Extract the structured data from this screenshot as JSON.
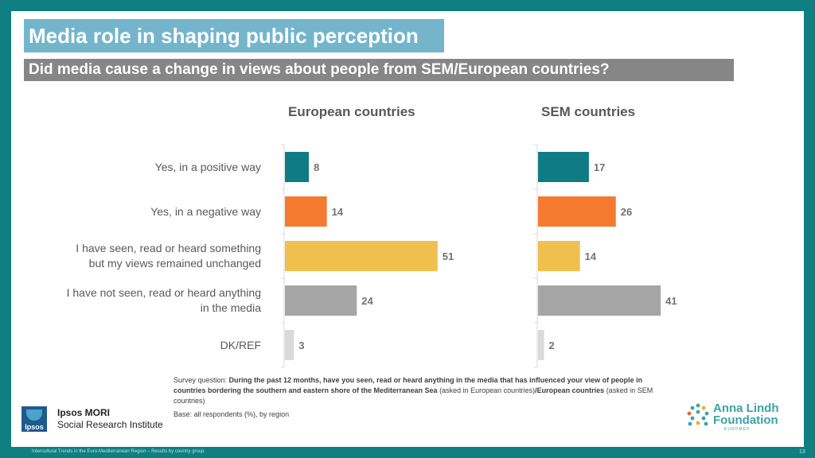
{
  "header": {
    "title": "Media role in shaping public perception",
    "subtitle": "Did media cause a change in views about people from SEM/European countries?"
  },
  "chart_data": {
    "type": "bar",
    "orientation": "horizontal",
    "categories": [
      "Yes, in a positive way",
      "Yes, in a negative way",
      "I have seen, read or heard something but my views remained unchanged",
      "I have not seen, read or heard anything in the media",
      "DK/REF"
    ],
    "category_lines": [
      [
        "Yes, in a positive way"
      ],
      [
        "Yes, in a negative way"
      ],
      [
        "I have seen, read or heard something",
        "but my views remained unchanged"
      ],
      [
        "I have not seen, read or heard anything",
        "in the media"
      ],
      [
        "DK/REF"
      ]
    ],
    "bar_colors": [
      "#0e7c82",
      "#f47a2f",
      "#f1bf4d",
      "#a5a5a5",
      "#d9d9d9"
    ],
    "label_color": "#767171",
    "series": [
      {
        "name": "European countries",
        "values": [
          8,
          14,
          51,
          24,
          3
        ]
      },
      {
        "name": "SEM countries",
        "values": [
          17,
          26,
          14,
          41,
          2
        ]
      }
    ],
    "xlim": [
      0,
      60
    ],
    "unit": "%"
  },
  "footer": {
    "question_prefix": "Survey question: ",
    "question_bold": "During the past 12 months, have you seen, read or heard anything in the media that has influenced your view of people in countries bordering the southern and eastern shore of the Mediterranean Sea",
    "question_note1": " (asked in European countries)",
    "question_bold2": "/European countries",
    "question_note2": " (asked in SEM countries)",
    "base": "Base: all respondents (%), by region",
    "bottom_text": "Intercultural Trends in the Euro-Mediterranean Region – Results by country group",
    "page_number": "13"
  },
  "logos": {
    "ipsos_short": "Ipsos",
    "ipsos_name": "Ipsos MORI",
    "ipsos_sub": "Social Research Institute",
    "alf_line1": "Anna Lindh",
    "alf_line2": "Foundation",
    "alf_small": "EUROMED"
  }
}
